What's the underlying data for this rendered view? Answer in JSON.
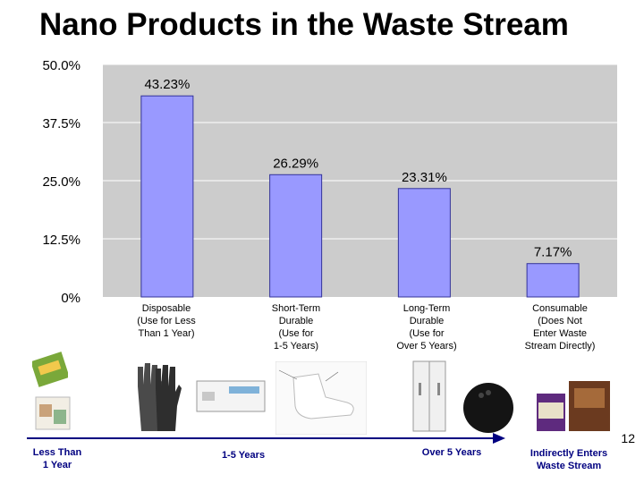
{
  "slide": {
    "title": "Nano Products in the Waste Stream",
    "page_number": "12"
  },
  "chart_data": {
    "type": "bar",
    "categories": [
      "Disposable\n(Use for Less\nThan 1 Year)",
      "Short-Term\nDurable\n(Use for\n1-5 Years)",
      "Long-Term\nDurable\n(Use for\nOver 5 Years)",
      "Consumable\n(Does Not\nEnter Waste\nStream Directly)"
    ],
    "values": [
      43.23,
      26.29,
      23.31,
      7.17
    ],
    "data_labels": [
      "43.23%",
      "26.29%",
      "23.31%",
      "7.17%"
    ],
    "ylim": [
      0,
      50
    ],
    "yticks": [
      "0%",
      "12.5%",
      "25.0%",
      "37.5%",
      "50.0%"
    ],
    "ytick_values": [
      0,
      12.5,
      25,
      37.5,
      50
    ],
    "grid": true,
    "colors": {
      "bar": "#9999ff",
      "bar_stroke": "#333399",
      "plot_bg": "#cccccc",
      "grid": "#ffffff"
    }
  },
  "timeline": {
    "labels": [
      "Less Than\n1 Year",
      "1-5 Years",
      "Over 5 Years",
      "Indirectly Enters\nWaste Stream"
    ],
    "color": "#000080"
  },
  "product_images": [
    "cleaning-wipes",
    "gloves",
    "battery",
    "socks",
    "refrigerator",
    "bowling-ball",
    "supplement-bottles"
  ]
}
